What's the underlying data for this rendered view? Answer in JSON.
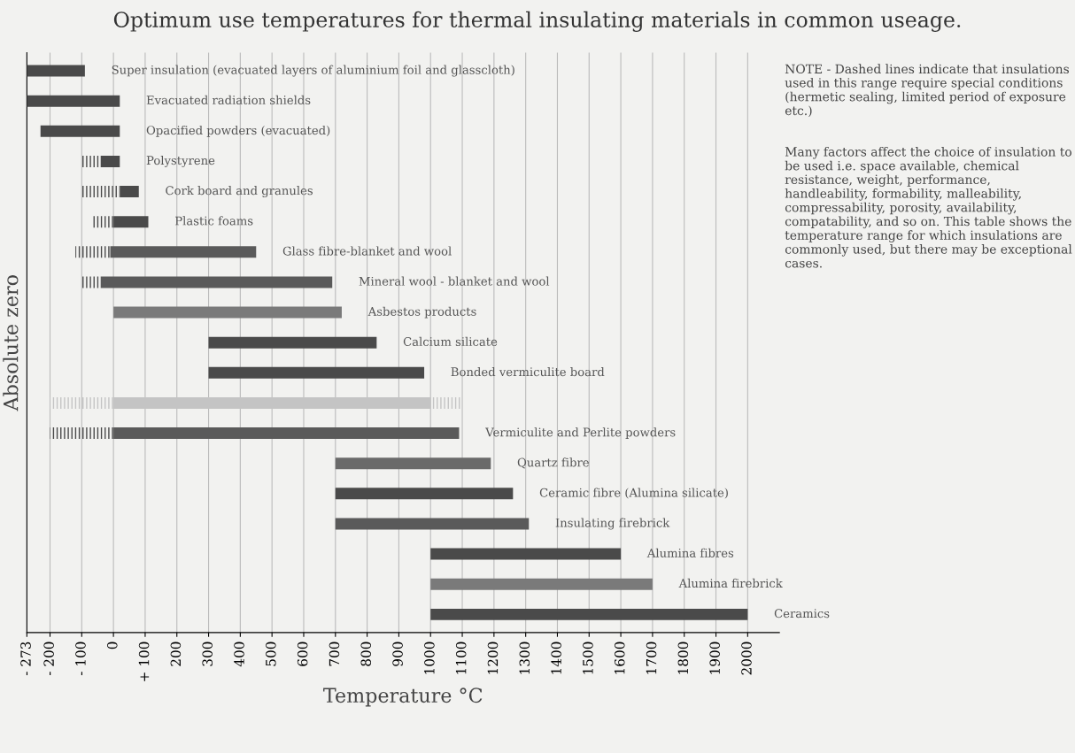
{
  "chart_data": {
    "type": "bar",
    "orientation": "horizontal",
    "title": "Optimum use temperatures for thermal insulating materials in common useage.",
    "xlabel": "Temperature °C",
    "ylabel": "Absolute zero",
    "categories": [
      "Super insulation (evacuated layers of aluminium foil and glasscloth)",
      "Evacuated radiation shields",
      "Opacified powders (evacuated)",
      "Polystyrene",
      "Cork board and granules",
      "Plastic foams",
      "Glass fibre-blanket and wool",
      "Mineral wool - blanket and wool",
      "Asbestos products",
      "Calcium silicate",
      "Bonded vermiculite board",
      null,
      "Vermiculite and Perlite powders",
      "Quartz fibre",
      "Ceramic fibre (Alumina silicate)",
      "Insulating firebrick",
      "Alumina fibres",
      "Alumina firebrick",
      "Ceramics"
    ],
    "series": [
      {
        "line_style": "dashed",
        "colors": [
          null,
          null,
          null,
          "#4a4a4a",
          "#4a4a4a",
          "#4a4a4a",
          "#4a4a4a",
          "#4a4a4a",
          null,
          null,
          null,
          "#c4c4c4",
          "#4a4a4a",
          null,
          null,
          null,
          null,
          null,
          null
        ],
        "base": [
          null,
          null,
          null,
          -100,
          -100,
          -70,
          -120,
          -100,
          null,
          null,
          null,
          -200,
          -200,
          null,
          null,
          null,
          null,
          null,
          null
        ],
        "values": [
          null,
          null,
          null,
          60,
          120,
          70,
          110,
          60,
          null,
          null,
          null,
          200,
          200,
          null,
          null,
          null,
          null,
          null,
          null
        ]
      },
      {
        "line_style": "solid",
        "colors": [
          "#4a4a4a",
          "#4a4a4a",
          "#4a4a4a",
          "#4a4a4a",
          "#4a4a4a",
          "#4a4a4a",
          "#5a5a5a",
          "#5a5a5a",
          "#7a7a7a",
          "#4a4a4a",
          "#4a4a4a",
          "#c4c4c4",
          "#5a5a5a",
          "#6a6a6a",
          "#4a4a4a",
          "#5a5a5a",
          "#4a4a4a",
          "#7a7a7a",
          "#4a4a4a"
        ],
        "base": [
          -273,
          -273,
          -230,
          -40,
          20,
          0,
          -10,
          -40,
          0,
          300,
          300,
          0,
          0,
          700,
          700,
          700,
          1000,
          1000,
          1000
        ],
        "values": [
          183,
          293,
          250,
          60,
          60,
          110,
          460,
          730,
          720,
          530,
          680,
          1000,
          1090,
          490,
          560,
          610,
          600,
          700,
          1000
        ]
      },
      {
        "line_style": "dashed",
        "colors": [
          null,
          null,
          null,
          null,
          null,
          null,
          null,
          null,
          null,
          null,
          null,
          "#c4c4c4",
          null,
          null,
          null,
          null,
          null,
          null,
          null
        ],
        "base": [
          null,
          null,
          null,
          null,
          null,
          null,
          null,
          null,
          null,
          null,
          null,
          1000,
          null,
          null,
          null,
          null,
          null,
          null,
          null
        ],
        "values": [
          null,
          null,
          null,
          null,
          null,
          null,
          null,
          null,
          null,
          null,
          null,
          100,
          null,
          null,
          null,
          null,
          null,
          null,
          null
        ]
      }
    ],
    "xlim": [
      -273,
      2100
    ],
    "xticks": [
      {
        "value": -273,
        "label": "- 273"
      },
      {
        "value": -200,
        "label": "- 200"
      },
      {
        "value": -100,
        "label": "- 100"
      },
      0,
      {
        "value": 100,
        "label": "+ 100"
      },
      200,
      300,
      400,
      500,
      600,
      700,
      800,
      900,
      1000,
      1100,
      1200,
      1300,
      1400,
      1500,
      1600,
      1700,
      1800,
      1900,
      2000
    ],
    "grid": "x",
    "annotations": [
      "NOTE - Dashed lines indicate that insulations used in this range require special conditions (hermetic sealing, limited period of exposure etc.)",
      "Many factors affect the choice of insulation to be used i.e. space available, chemical resistance, weight, performance, handleability, formability, malleability, compressability, porosity, availability, compatability, and so on. This table shows the temperature range for which insulations are commonly used, but there may be exceptional cases."
    ]
  }
}
